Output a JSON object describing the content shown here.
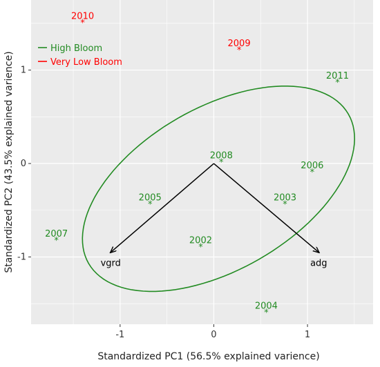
{
  "chart_data": {
    "type": "scatter",
    "title": "",
    "xlabel": "Standardized PC1 (56.5% explained varience)",
    "ylabel": "Standardized PC2 (43.5% explained varience)",
    "xlim": [
      -1.95,
      1.7
    ],
    "ylim": [
      -1.72,
      1.75
    ],
    "x_ticks": [
      -1,
      0,
      1
    ],
    "y_ticks": [
      -1,
      0,
      1
    ],
    "grid": true,
    "legend_position": "top-left",
    "colors": {
      "high": "#228B22",
      "very_low": "#FF0000",
      "arrow": "#000000",
      "panel": "#EBEBEB",
      "gridline": "#FFFFFF"
    },
    "series": [
      {
        "name": "High Bloom",
        "color": "#228B22",
        "points": [
          {
            "label": "2011",
            "x": 1.32,
            "y": 0.87
          },
          {
            "label": "2008",
            "x": 0.08,
            "y": 0.02
          },
          {
            "label": "2006",
            "x": 1.05,
            "y": -0.09
          },
          {
            "label": "2005",
            "x": -0.68,
            "y": -0.43
          },
          {
            "label": "2003",
            "x": 0.76,
            "y": -0.43
          },
          {
            "label": "2007",
            "x": -1.68,
            "y": -0.82
          },
          {
            "label": "2002",
            "x": -0.14,
            "y": -0.89
          },
          {
            "label": "2004",
            "x": 0.56,
            "y": -1.59
          }
        ]
      },
      {
        "name": "Very Low Bloom",
        "color": "#FF0000",
        "points": [
          {
            "label": "2010",
            "x": -1.4,
            "y": 1.51
          },
          {
            "label": "2009",
            "x": 0.27,
            "y": 1.22
          }
        ]
      }
    ],
    "vectors": [
      {
        "label": "vgrd",
        "x": -1.1,
        "y": -0.95
      },
      {
        "label": "adg",
        "x": 1.12,
        "y": -0.95
      }
    ],
    "ellipse": {
      "center_x": 0.05,
      "center_y": -0.27,
      "semi_major": 1.6,
      "semi_minor": 0.87,
      "rotation_deg": 30,
      "color": "#228B22"
    }
  }
}
